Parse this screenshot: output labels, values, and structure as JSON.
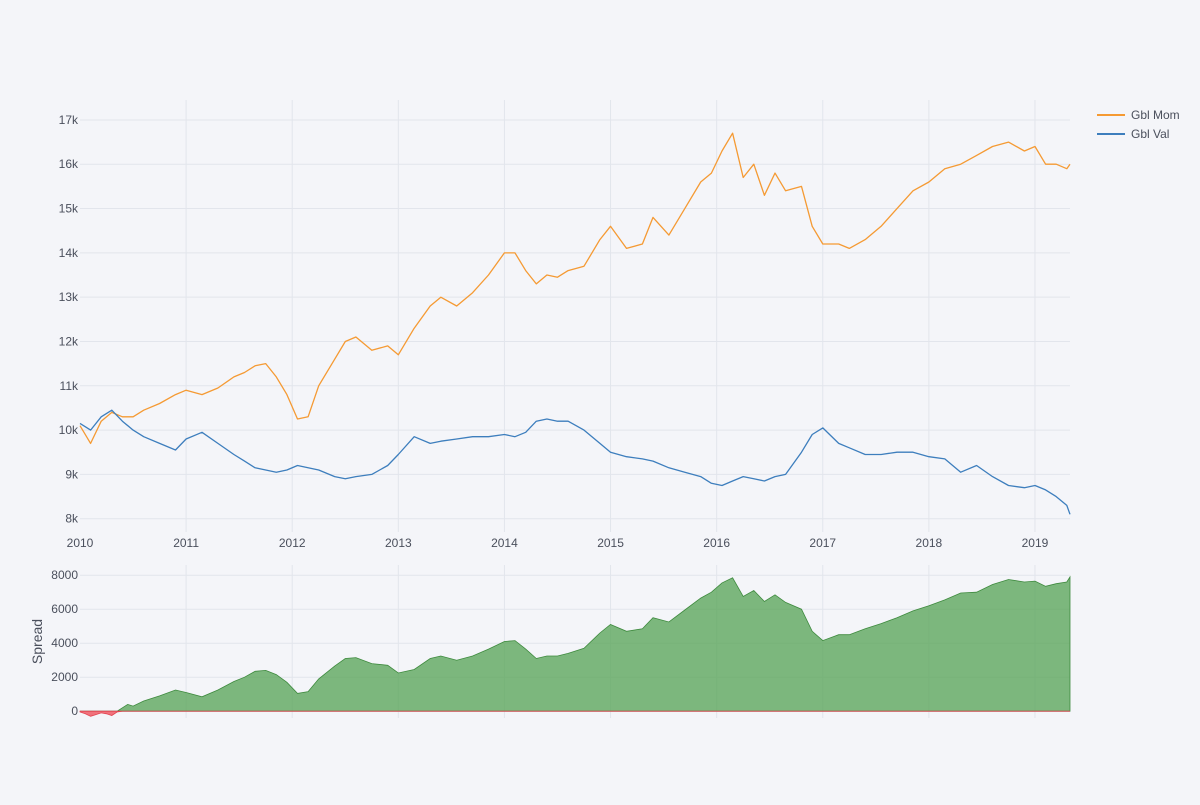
{
  "chart_data": [
    {
      "type": "line",
      "xlim": [
        2010.0,
        2019.33
      ],
      "ylim": [
        7700,
        17450
      ],
      "x_ticks": [
        {
          "value": 2010,
          "label": "2010"
        },
        {
          "value": 2011,
          "label": "2011"
        },
        {
          "value": 2012,
          "label": "2012"
        },
        {
          "value": 2013,
          "label": "2013"
        },
        {
          "value": 2014,
          "label": "2014"
        },
        {
          "value": 2015,
          "label": "2015"
        },
        {
          "value": 2016,
          "label": "2016"
        },
        {
          "value": 2017,
          "label": "2017"
        },
        {
          "value": 2018,
          "label": "2018"
        },
        {
          "value": 2019,
          "label": "2019"
        }
      ],
      "y_ticks": [
        {
          "value": 8000,
          "label": "8k"
        },
        {
          "value": 9000,
          "label": "9k"
        },
        {
          "value": 10000,
          "label": "10k"
        },
        {
          "value": 11000,
          "label": "11k"
        },
        {
          "value": 12000,
          "label": "12k"
        },
        {
          "value": 13000,
          "label": "13k"
        },
        {
          "value": 14000,
          "label": "14k"
        },
        {
          "value": 15000,
          "label": "15k"
        },
        {
          "value": 16000,
          "label": "16k"
        },
        {
          "value": 17000,
          "label": "17k"
        }
      ],
      "grid": true,
      "legend_position": "top-right",
      "series": [
        {
          "name": "Gbl Mom",
          "color": "#f59a33",
          "x": [
            2010.0,
            2010.1,
            2010.2,
            2010.3,
            2010.4,
            2010.5,
            2010.6,
            2010.75,
            2010.9,
            2011.0,
            2011.15,
            2011.3,
            2011.45,
            2011.55,
            2011.65,
            2011.75,
            2011.85,
            2011.95,
            2012.05,
            2012.15,
            2012.25,
            2012.4,
            2012.5,
            2012.6,
            2012.75,
            2012.9,
            2013.0,
            2013.15,
            2013.3,
            2013.4,
            2013.55,
            2013.7,
            2013.85,
            2014.0,
            2014.1,
            2014.2,
            2014.3,
            2014.4,
            2014.5,
            2014.6,
            2014.75,
            2014.9,
            2015.0,
            2015.15,
            2015.3,
            2015.4,
            2015.55,
            2015.7,
            2015.85,
            2015.95,
            2016.05,
            2016.15,
            2016.25,
            2016.35,
            2016.45,
            2016.55,
            2016.65,
            2016.8,
            2016.9,
            2017.0,
            2017.15,
            2017.25,
            2017.4,
            2017.55,
            2017.7,
            2017.85,
            2018.0,
            2018.15,
            2018.3,
            2018.45,
            2018.6,
            2018.75,
            2018.9,
            2019.0,
            2019.1,
            2019.2,
            2019.3,
            2019.33
          ],
          "y": [
            10100,
            9700,
            10200,
            10400,
            10300,
            10300,
            10450,
            10600,
            10800,
            10900,
            10800,
            10950,
            11200,
            11300,
            11450,
            11500,
            11200,
            10800,
            10250,
            10300,
            11000,
            11600,
            12000,
            12100,
            11800,
            11900,
            11700,
            12300,
            12800,
            13000,
            12800,
            13100,
            13500,
            14000,
            14000,
            13600,
            13300,
            13500,
            13450,
            13600,
            13700,
            14300,
            14600,
            14100,
            14200,
            14800,
            14400,
            15000,
            15600,
            15800,
            16300,
            16700,
            15700,
            16000,
            15300,
            15800,
            15400,
            15500,
            14600,
            14200,
            14200,
            14100,
            14300,
            14600,
            15000,
            15400,
            15600,
            15900,
            16000,
            16200,
            16400,
            16500,
            16300,
            16400,
            16000,
            16000,
            15900,
            16000
          ]
        },
        {
          "name": "Gbl Val",
          "color": "#3d7ebd",
          "x": [
            2010.0,
            2010.1,
            2010.2,
            2010.3,
            2010.4,
            2010.5,
            2010.6,
            2010.75,
            2010.9,
            2011.0,
            2011.15,
            2011.3,
            2011.45,
            2011.55,
            2011.65,
            2011.75,
            2011.85,
            2011.95,
            2012.05,
            2012.15,
            2012.25,
            2012.4,
            2012.5,
            2012.6,
            2012.75,
            2012.9,
            2013.0,
            2013.15,
            2013.3,
            2013.4,
            2013.55,
            2013.7,
            2013.85,
            2014.0,
            2014.1,
            2014.2,
            2014.3,
            2014.4,
            2014.5,
            2014.6,
            2014.75,
            2014.9,
            2015.0,
            2015.15,
            2015.3,
            2015.4,
            2015.55,
            2015.7,
            2015.85,
            2015.95,
            2016.05,
            2016.15,
            2016.25,
            2016.35,
            2016.45,
            2016.55,
            2016.65,
            2016.8,
            2016.9,
            2017.0,
            2017.15,
            2017.25,
            2017.4,
            2017.55,
            2017.7,
            2017.85,
            2018.0,
            2018.15,
            2018.3,
            2018.45,
            2018.6,
            2018.75,
            2018.9,
            2019.0,
            2019.1,
            2019.2,
            2019.3,
            2019.33
          ],
          "y": [
            10150,
            10000,
            10300,
            10450,
            10200,
            10000,
            9850,
            9700,
            9550,
            9800,
            9950,
            9700,
            9450,
            9300,
            9150,
            9100,
            9050,
            9100,
            9200,
            9150,
            9100,
            8950,
            8900,
            8950,
            9000,
            9200,
            9450,
            9850,
            9700,
            9750,
            9800,
            9850,
            9850,
            9900,
            9850,
            9950,
            10200,
            10250,
            10200,
            10200,
            10000,
            9700,
            9500,
            9400,
            9350,
            9300,
            9150,
            9050,
            8950,
            8800,
            8750,
            8850,
            8950,
            8900,
            8850,
            8950,
            9000,
            9500,
            9900,
            10050,
            9700,
            9600,
            9450,
            9450,
            9500,
            9500,
            9400,
            9350,
            9050,
            9200,
            8950,
            8750,
            8700,
            8750,
            8650,
            8500,
            8300,
            8100
          ]
        }
      ]
    },
    {
      "type": "area",
      "ylabel": "Spread",
      "xlim": [
        2010.0,
        2019.33
      ],
      "ylim": [
        -400,
        8600
      ],
      "y_ticks": [
        {
          "value": 0,
          "label": "0"
        },
        {
          "value": 2000,
          "label": "2000"
        },
        {
          "value": 4000,
          "label": "4000"
        },
        {
          "value": 6000,
          "label": "6000"
        },
        {
          "value": 8000,
          "label": "8000"
        }
      ],
      "grid": true,
      "positive_color": "#5aa55a",
      "negative_color": "#ef5b66",
      "x": [
        2010.0,
        2010.05,
        2010.1,
        2010.15,
        2010.2,
        2010.25,
        2010.3,
        2010.35,
        2010.4,
        2010.45,
        2010.5,
        2010.6,
        2010.75,
        2010.9,
        2011.0,
        2011.15,
        2011.3,
        2011.45,
        2011.55,
        2011.65,
        2011.75,
        2011.85,
        2011.95,
        2012.05,
        2012.15,
        2012.25,
        2012.4,
        2012.5,
        2012.6,
        2012.75,
        2012.9,
        2013.0,
        2013.15,
        2013.3,
        2013.4,
        2013.55,
        2013.7,
        2013.85,
        2014.0,
        2014.1,
        2014.2,
        2014.3,
        2014.4,
        2014.5,
        2014.6,
        2014.75,
        2014.9,
        2015.0,
        2015.15,
        2015.3,
        2015.4,
        2015.55,
        2015.7,
        2015.85,
        2015.95,
        2016.05,
        2016.15,
        2016.25,
        2016.35,
        2016.45,
        2016.55,
        2016.65,
        2016.8,
        2016.9,
        2017.0,
        2017.15,
        2017.25,
        2017.4,
        2017.55,
        2017.7,
        2017.85,
        2018.0,
        2018.15,
        2018.3,
        2018.45,
        2018.6,
        2018.75,
        2018.9,
        2019.0,
        2019.1,
        2019.2,
        2019.3,
        2019.33
      ],
      "values": [
        -50,
        -150,
        -300,
        -200,
        -100,
        -150,
        -250,
        -50,
        200,
        400,
        300,
        600,
        900,
        1250,
        1100,
        850,
        1250,
        1750,
        2000,
        2350,
        2400,
        2150,
        1700,
        1050,
        1150,
        1900,
        2650,
        3100,
        3150,
        2800,
        2700,
        2250,
        2450,
        3100,
        3250,
        3000,
        3250,
        3650,
        4100,
        4150,
        3650,
        3100,
        3250,
        3250,
        3400,
        3700,
        4600,
        5100,
        4700,
        4850,
        5500,
        5250,
        5950,
        6650,
        7000,
        7550,
        7850,
        6750,
        7100,
        6450,
        6850,
        6400,
        6000,
        4700,
        4150,
        4500,
        4500,
        4850,
        5150,
        5500,
        5900,
        6200,
        6550,
        6950,
        7000,
        7450,
        7750,
        7600,
        7650,
        7350,
        7500,
        7600,
        7900
      ]
    }
  ]
}
